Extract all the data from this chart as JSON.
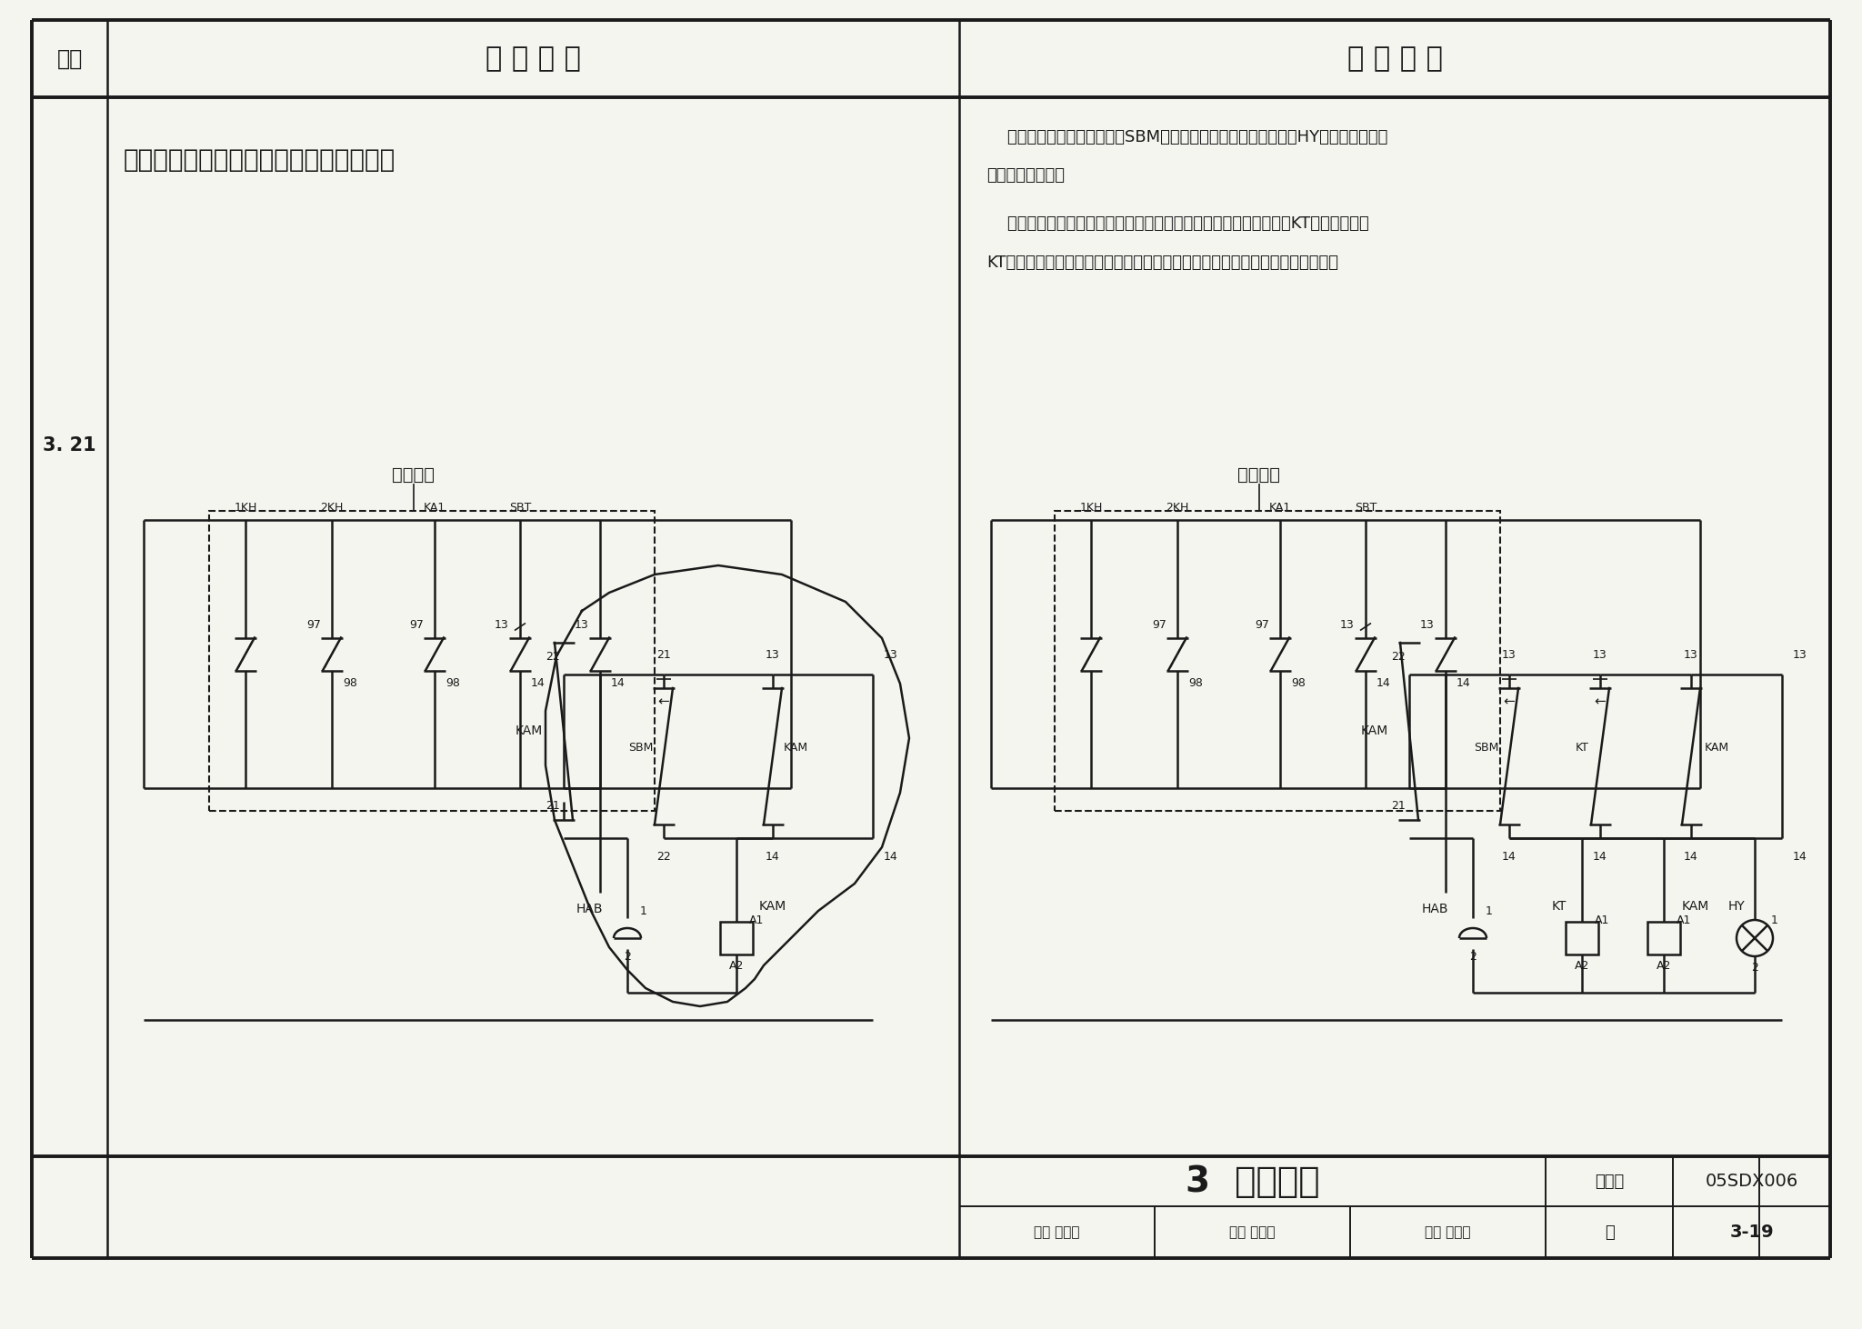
{
  "title_row_seq": "序号",
  "title_row_problem": "常 见 问 题",
  "title_row_solution": "改 进 措 施",
  "seq_num": "3. 21",
  "problem_title": "声响、灯光报警控制电路报警后不能消声",
  "sol_line1": "    声响报警后，按下消声按钮SBM，停止声响报警，而黄色信号灯HY保持点燃，直至",
  "sol_line2": "报警消除后熄灭。",
  "sol_line3": "    因电铃是短期工作制，超过规定的时间会烧毁的。增加延时继电器KT，延时继电器",
  "sol_line4": "KT的延时时间小于电铃允许的工作时间，人工未采取消声时，可自动进行消声。",
  "bottom_title": "3  低压配电",
  "chart_num_label": "图集号",
  "chart_id": "05SDX006",
  "page_label": "页",
  "page_num": "3-19",
  "reviewer_text": "审核 孙成群",
  "checker_text": "校对 李雪佩",
  "designer_text": "设计 刘屏周",
  "bg_color": "#f5f5f0"
}
